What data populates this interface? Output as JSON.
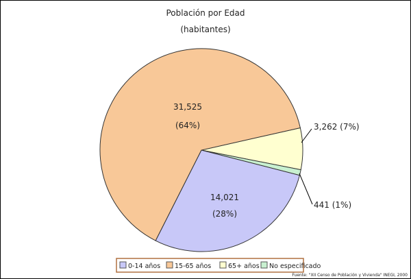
{
  "chart_data": {
    "type": "pie",
    "title": "Población por Edad",
    "subtitle": "(habitantes)",
    "slices": [
      {
        "label": "65+ años",
        "value": 3262,
        "percent_label": "3,262 (7%)",
        "color": "#ffffd0"
      },
      {
        "label": "No especificado",
        "value": 441,
        "percent_label": "441 (1%)",
        "color": "#c8f0d0"
      },
      {
        "label": "0-14 años",
        "value": 14021,
        "value_label": "14,021",
        "percent_label": "(28%)",
        "color": "#c8c8f8"
      },
      {
        "label": "15-65 años",
        "value": 31525,
        "value_label": "31,525",
        "percent_label": "(64%)",
        "color": "#f8c898"
      }
    ],
    "legend": {
      "placement": "bottom",
      "entries": [
        "0-14 años",
        "15-65 años",
        "65+ años",
        "No especificado"
      ],
      "colors": [
        "#c8c8f8",
        "#f8c898",
        "#ffffd0",
        "#c8f0d0"
      ],
      "border_color": "#b07040"
    },
    "source": "Fuente: \"XII Censo de Población y Vivienda\" INEGI, 2000"
  }
}
